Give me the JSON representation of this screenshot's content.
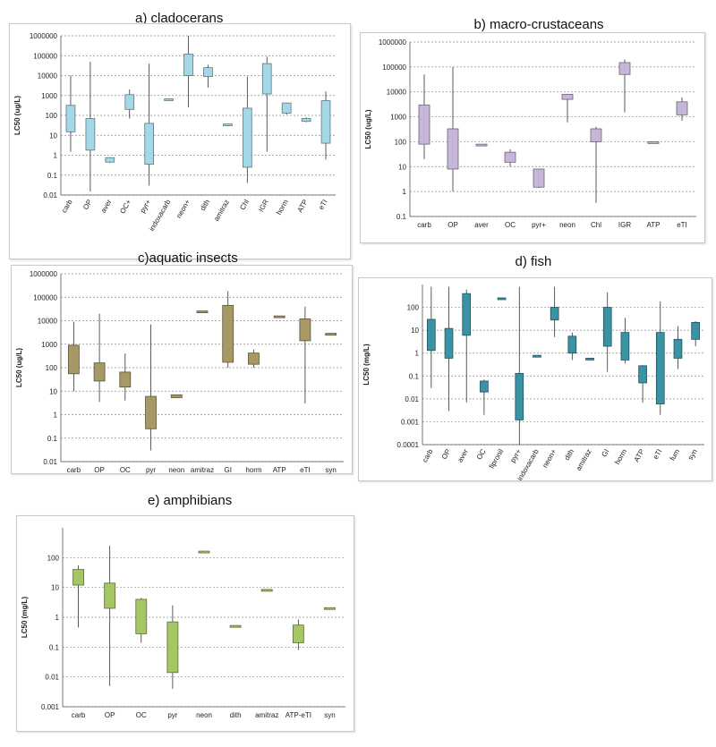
{
  "chart_data": [
    {
      "type": "box",
      "title": "a) cladocerans",
      "ylabel": "LC50 (ug/L)",
      "yscale": "log",
      "ylim": [
        0.01,
        1000000
      ],
      "yticks": [
        "0.01",
        "0.1",
        "1",
        "10",
        "100",
        "1000",
        "10000",
        "100000",
        "1000000"
      ],
      "fill": "#a5d8e6",
      "categories": [
        "carb",
        "OP",
        "aver",
        "OC+",
        "pyr+",
        "indoxacarb",
        "neon+",
        "dith",
        "amitraz",
        "Chl",
        "IGR",
        "horm",
        "ATP",
        "eTI"
      ],
      "boxes": [
        {
          "min": 1.5,
          "q1": 15,
          "q3": 320,
          "max": 10000
        },
        {
          "min": 0.015,
          "q1": 1.8,
          "q3": 70,
          "max": 50000
        },
        {
          "min": 0.4,
          "q1": 0.45,
          "q3": 0.75,
          "max": 0.8
        },
        {
          "min": 70,
          "q1": 200,
          "q3": 1100,
          "max": 2000
        },
        {
          "min": 0.03,
          "q1": 0.35,
          "q3": 40,
          "max": 40000
        },
        {
          "min": 600,
          "q1": 620,
          "q3": 680,
          "max": 700
        },
        {
          "min": 250,
          "q1": 10000,
          "q3": 120000,
          "max": 1000000
        },
        {
          "min": 2500,
          "q1": 9000,
          "q3": 25000,
          "max": 35000
        },
        {
          "min": 32,
          "q1": 33,
          "q3": 37,
          "max": 38
        },
        {
          "min": 0.04,
          "q1": 0.25,
          "q3": 230,
          "max": 9000
        },
        {
          "min": 1.5,
          "q1": 1200,
          "q3": 40000,
          "max": 90000
        },
        {
          "min": 110,
          "q1": 130,
          "q3": 420,
          "max": 420
        },
        {
          "min": 45,
          "q1": 50,
          "q3": 70,
          "max": 80
        },
        {
          "min": 0.6,
          "q1": 4,
          "q3": 550,
          "max": 1600
        }
      ]
    },
    {
      "type": "box",
      "title": "b) macro-crustaceans",
      "ylabel": "LC50 (ug/L)",
      "yscale": "log",
      "ylim": [
        0.1,
        1000000
      ],
      "yticks": [
        "0.1",
        "1",
        "10",
        "100",
        "1000",
        "10000",
        "100000",
        "1000000"
      ],
      "fill": "#c6b6d8",
      "categories": [
        "carb",
        "OP",
        "aver",
        "OC",
        "pyr+",
        "neon",
        "Chl",
        "IGR",
        "ATP",
        "eTI"
      ],
      "boxes": [
        {
          "min": 20,
          "q1": 80,
          "q3": 3000,
          "max": 50000
        },
        {
          "min": 1,
          "q1": 8,
          "q3": 330,
          "max": 100000
        },
        {
          "min": 75,
          "q1": 76,
          "q3": 80,
          "max": 80
        },
        {
          "min": 10,
          "q1": 15,
          "q3": 38,
          "max": 50
        },
        {
          "min": 1.4,
          "q1": 1.5,
          "q3": 8,
          "max": 8
        },
        {
          "min": 600,
          "q1": 5000,
          "q3": 8000,
          "max": 8000
        },
        {
          "min": 0.35,
          "q1": 100,
          "q3": 330,
          "max": 400
        },
        {
          "min": 1500,
          "q1": 50000,
          "q3": 150000,
          "max": 200000
        },
        {
          "min": 95,
          "q1": 96,
          "q3": 100,
          "max": 100
        },
        {
          "min": 700,
          "q1": 1200,
          "q3": 4000,
          "max": 6000
        }
      ]
    },
    {
      "type": "box",
      "title": "c)aquatic insects",
      "ylabel": "LC50 (ug/L)",
      "yscale": "log",
      "ylim": [
        0.01,
        1000000
      ],
      "yticks": [
        "0.01",
        "0.1",
        "1",
        "10",
        "100",
        "1000",
        "10000",
        "100000",
        "1000000"
      ],
      "fill": "#a89866",
      "categories": [
        "carb",
        "OP",
        "OC",
        "pyr",
        "neon",
        "amitraz",
        "GI",
        "horm",
        "ATP",
        "eTI",
        "syn"
      ],
      "boxes": [
        {
          "min": 10,
          "q1": 55,
          "q3": 900,
          "max": 9000
        },
        {
          "min": 3.5,
          "q1": 27,
          "q3": 160,
          "max": 20000
        },
        {
          "min": 4,
          "q1": 15,
          "q3": 65,
          "max": 400
        },
        {
          "min": 0.03,
          "q1": 0.25,
          "q3": 6,
          "max": 7000
        },
        {
          "min": 5,
          "q1": 5.3,
          "q3": 7,
          "max": 7
        },
        {
          "min": 24000,
          "q1": 25000,
          "q3": 26000,
          "max": 26000
        },
        {
          "min": 100,
          "q1": 170,
          "q3": 45000,
          "max": 180000
        },
        {
          "min": 100,
          "q1": 140,
          "q3": 420,
          "max": 600
        },
        {
          "min": 14000,
          "q1": 15000,
          "q3": 16000,
          "max": 16000
        },
        {
          "min": 3,
          "q1": 1400,
          "q3": 12000,
          "max": 40000
        },
        {
          "min": 2700,
          "q1": 2800,
          "q3": 2900,
          "max": 2900
        }
      ]
    },
    {
      "type": "box",
      "title": "d) fish",
      "ylabel": "LC50 (mg/L)",
      "yscale": "log",
      "ylim": [
        0.0001,
        1000
      ],
      "yticks": [
        "0.0001",
        "0.001",
        "0.01",
        "0.1",
        "1",
        "10",
        "100"
      ],
      "fill": "#3a93a5",
      "categories": [
        "carb",
        "OP",
        "aver",
        "OC",
        "fipronil",
        "pyr+",
        "indoxacarb",
        "neon+",
        "dith",
        "amitraz",
        "GI",
        "horm",
        "ATP",
        "eTI",
        "fum",
        "syn"
      ],
      "boxes": [
        {
          "min": 0.03,
          "q1": 1.3,
          "q3": 30,
          "max": 800
        },
        {
          "min": 0.003,
          "q1": 0.6,
          "q3": 12,
          "max": 800
        },
        {
          "min": 0.007,
          "q1": 6,
          "q3": 400,
          "max": 600
        },
        {
          "min": 0.002,
          "q1": 0.02,
          "q3": 0.06,
          "max": 0.07
        },
        {
          "min": 240,
          "q1": 245,
          "q3": 260,
          "max": 260
        },
        {
          "min": 0.0001,
          "q1": 0.0012,
          "q3": 0.13,
          "max": 800
        },
        {
          "min": 0.7,
          "q1": 0.72,
          "q3": 0.8,
          "max": 0.8
        },
        {
          "min": 5,
          "q1": 28,
          "q3": 100,
          "max": 800
        },
        {
          "min": 0.5,
          "q1": 1,
          "q3": 5.5,
          "max": 8
        },
        {
          "min": 0.55,
          "q1": 0.56,
          "q3": 0.6,
          "max": 0.6
        },
        {
          "min": 0.15,
          "q1": 2,
          "q3": 100,
          "max": 450
        },
        {
          "min": 0.35,
          "q1": 0.5,
          "q3": 8,
          "max": 35
        },
        {
          "min": 0.007,
          "q1": 0.05,
          "q3": 0.28,
          "max": 0.3
        },
        {
          "min": 0.002,
          "q1": 0.006,
          "q3": 8,
          "max": 180
        },
        {
          "min": 0.2,
          "q1": 0.6,
          "q3": 4,
          "max": 15
        },
        {
          "min": 2,
          "q1": 4,
          "q3": 22,
          "max": 25
        }
      ]
    },
    {
      "type": "box",
      "title": "e) amphibians",
      "ylabel": "LC50 (mg/L)",
      "yscale": "log",
      "ylim": [
        0.001,
        1000
      ],
      "yticks": [
        "0.001",
        "0.01",
        "0.1",
        "1",
        "10",
        "100"
      ],
      "fill": "#a6c564",
      "categories": [
        "carb",
        "OP",
        "OC",
        "pyr",
        "neon",
        "dith",
        "amitraz",
        "ATP-eTI",
        "syn"
      ],
      "boxes": [
        {
          "min": 0.45,
          "q1": 12,
          "q3": 40,
          "max": 55
        },
        {
          "min": 0.005,
          "q1": 2,
          "q3": 14,
          "max": 250
        },
        {
          "min": 0.14,
          "q1": 0.28,
          "q3": 4,
          "max": 4.5
        },
        {
          "min": 0.004,
          "q1": 0.014,
          "q3": 0.7,
          "max": 2.5
        },
        {
          "min": 155,
          "q1": 158,
          "q3": 165,
          "max": 165
        },
        {
          "min": 0.5,
          "q1": 0.51,
          "q3": 0.53,
          "max": 0.53
        },
        {
          "min": 8,
          "q1": 8.2,
          "q3": 8.6,
          "max": 8.6
        },
        {
          "min": 0.08,
          "q1": 0.14,
          "q3": 0.55,
          "max": 0.85
        },
        {
          "min": 2,
          "q1": 2.05,
          "q3": 2.1,
          "max": 2.1
        }
      ]
    }
  ]
}
